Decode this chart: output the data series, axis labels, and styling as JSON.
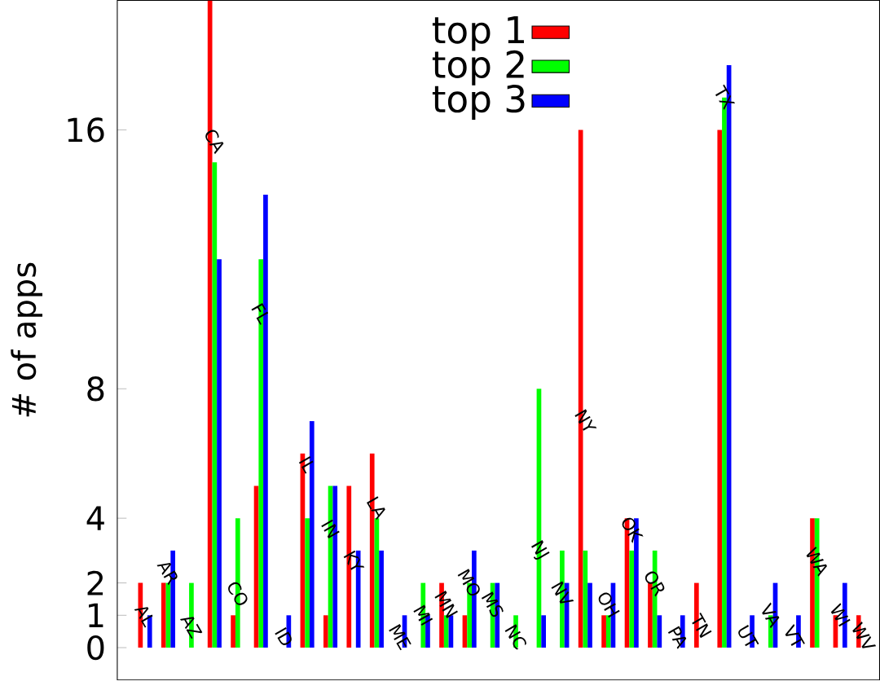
{
  "chart_data": {
    "type": "bar",
    "ylabel": "# of apps",
    "categories": [
      "AL",
      "AR",
      "AZ",
      "CA",
      "CO",
      "FL",
      "ID",
      "IL",
      "IN",
      "KY",
      "LA",
      "ME",
      "MI",
      "MN",
      "MO",
      "MS",
      "NC",
      "NJ",
      "NV",
      "NY",
      "OH",
      "OK",
      "OR",
      "PA",
      "TN",
      "TX",
      "UT",
      "VA",
      "VT",
      "WA",
      "WI",
      "WV"
    ],
    "series": [
      {
        "name": "top 1",
        "color": "#ff0000",
        "values": [
          2,
          2,
          0,
          20,
          1,
          5,
          0,
          6,
          1,
          5,
          6,
          0,
          0,
          2,
          1,
          0,
          0,
          0,
          0,
          16,
          1,
          4,
          2,
          0,
          2,
          16,
          0,
          0,
          0,
          4,
          1,
          1
        ]
      },
      {
        "name": "top 2",
        "color": "#00ff00",
        "values": [
          0,
          2,
          2,
          15,
          4,
          12,
          0,
          4,
          5,
          0,
          4,
          0,
          2,
          1,
          2,
          2,
          1,
          8,
          3,
          3,
          1,
          3,
          3,
          0,
          0,
          17,
          0,
          1,
          0,
          4,
          0,
          0
        ]
      },
      {
        "name": "top 3",
        "color": "#0000ff",
        "values": [
          1,
          3,
          0,
          12,
          0,
          14,
          1,
          7,
          5,
          3,
          3,
          1,
          1,
          1,
          3,
          2,
          0,
          1,
          2,
          2,
          2,
          4,
          1,
          1,
          0,
          18,
          1,
          2,
          1,
          0,
          2,
          0
        ]
      }
    ],
    "ylim": [
      -1,
      20
    ],
    "yticks": [
      0,
      1,
      2,
      4,
      8,
      16
    ],
    "legend": "top"
  }
}
